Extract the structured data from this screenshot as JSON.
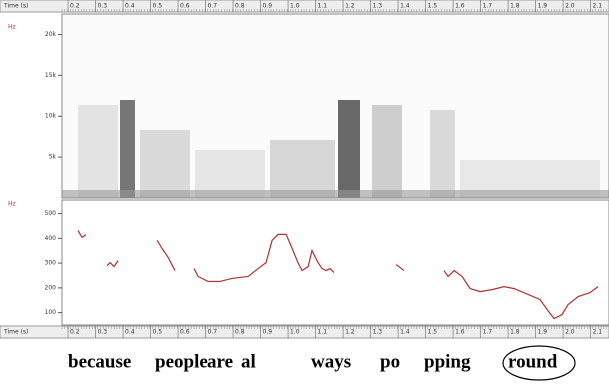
{
  "chart_data": [
    {
      "type": "spectrogram",
      "y_label": "Hz",
      "ylim": [
        0,
        22500
      ],
      "yticks": [
        {
          "value": 5000,
          "label": "5k"
        },
        {
          "value": 10000,
          "label": "10k"
        },
        {
          "value": 15000,
          "label": "15k"
        },
        {
          "value": 20000,
          "label": "20k"
        }
      ]
    },
    {
      "type": "line",
      "y_label": "Hz",
      "x_label": "Time (s)",
      "xlim": [
        0.178,
        2.167
      ],
      "xticks": [
        0.2,
        0.3,
        0.4,
        0.5,
        0.6,
        0.7,
        0.8,
        0.9,
        {
          "value": 1,
          "label": "1.0"
        },
        1.1,
        1.2,
        1.3,
        1.4,
        1.5,
        1.6,
        1.7,
        1.8,
        1.9,
        {
          "value": 2,
          "label": "2.0"
        },
        2.1
      ],
      "ylim": [
        50,
        555
      ],
      "yticks": [
        100,
        200,
        300,
        400,
        500
      ],
      "series": [
        {
          "color": "#b03030",
          "x": [
            0.236,
            0.251,
            0.265,
            null,
            0.342,
            0.353,
            0.367,
            0.382,
            null,
            0.524,
            0.542,
            0.564,
            0.589,
            null,
            0.658,
            0.673,
            0.709,
            0.753,
            0.796,
            0.855,
            0.891,
            0.92,
            0.942,
            0.964,
            0.993,
            1.015,
            1.036,
            1.051,
            1.073,
            1.087,
            1.109,
            1.124,
            1.138,
            1.153,
            1.167,
            null,
            1.393,
            1.422,
            null,
            1.567,
            1.582,
            1.604,
            1.633,
            1.662,
            1.698,
            1.742,
            1.785,
            1.822,
            1.865,
            1.916,
            1.945,
            1.967,
            1.996,
            2.018,
            2.055,
            2.098,
            2.127
          ],
          "values": [
            432,
            404,
            415,
            null,
            290,
            302,
            286,
            310,
            null,
            392,
            359,
            323,
            270,
            null,
            278,
            246,
            226,
            226,
            238,
            246,
            278,
            302,
            392,
            416,
            416,
            359,
            302,
            270,
            286,
            351,
            302,
            278,
            270,
            278,
            262,
            null,
            294,
            270,
            null,
            270,
            246,
            270,
            246,
            197,
            185,
            193,
            205,
            197,
            177,
            153,
            108,
            76,
            92,
            132,
            165,
            181,
            205
          ]
        }
      ]
    }
  ],
  "transcript": {
    "words": [
      "because",
      "people",
      "are",
      "al",
      "ways",
      "po",
      "pping",
      "round"
    ]
  }
}
